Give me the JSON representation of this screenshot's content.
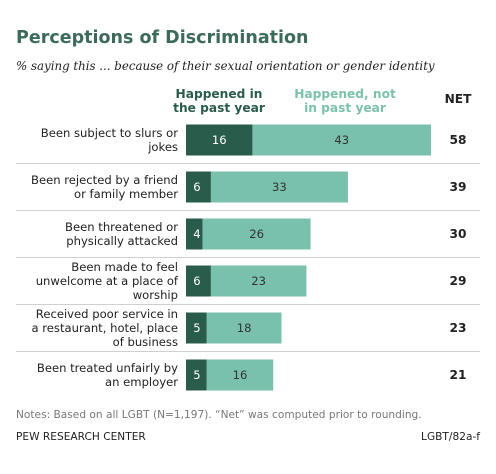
{
  "colors": {
    "title": "#3d6b5a",
    "past_year": "#2a5c4b",
    "not_past_year": "#79c1ac",
    "past_year_header": "#2a5c4b",
    "not_past_year_header": "#7cc2ad",
    "separator": "#d0d0d0"
  },
  "header": {
    "title": "Perceptions of Discrimination",
    "subtitle": "% saying this ... because of their sexual orientation or gender identity"
  },
  "legend": {
    "past_year_line1": "Happened in",
    "past_year_line2": "the past year",
    "not_past_year_line1": "Happened, not",
    "not_past_year_line2": "in past year",
    "net_label": "NET"
  },
  "chart_data": {
    "type": "bar",
    "orientation": "horizontal",
    "stacked": true,
    "title": "Perceptions of Discrimination",
    "subtitle": "% saying this ... because of their sexual orientation or gender identity",
    "categories": [
      [
        "Been subject to slurs or",
        "jokes"
      ],
      [
        "Been rejected by a friend",
        "or family member"
      ],
      [
        "Been threatened or",
        "physically attacked"
      ],
      [
        "Been made to feel",
        "unwelcome at a place of",
        "worship"
      ],
      [
        "Received poor service in",
        "a restaurant, hotel, place",
        "of business"
      ],
      [
        "Been treated unfairly by",
        "an employer"
      ]
    ],
    "series": [
      {
        "name": "Happened in the past year",
        "values": [
          16,
          6,
          4,
          6,
          5,
          5
        ]
      },
      {
        "name": "Happened, not in past year",
        "values": [
          43,
          33,
          26,
          23,
          18,
          16
        ]
      }
    ],
    "net": [
      58,
      39,
      30,
      29,
      23,
      21
    ],
    "xlim": [
      0,
      60
    ],
    "grid": false
  },
  "footer": {
    "notes": "Notes: Based on all LGBT (N=1,197). “Net” was computed prior to rounding.",
    "source": "PEW RESEARCH CENTER",
    "code": "LGBT/82a-f"
  }
}
